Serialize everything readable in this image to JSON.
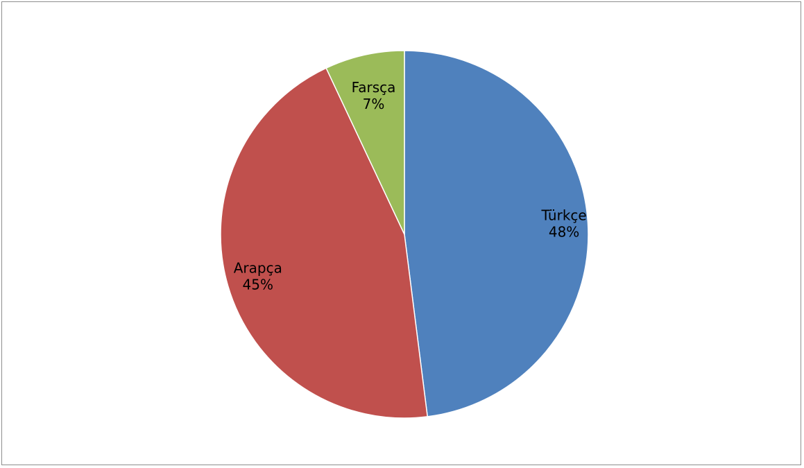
{
  "chart_data": {
    "type": "pie",
    "title": "",
    "legend": "none",
    "start": "top",
    "direction": "clockwise",
    "slices": [
      {
        "label": "Türkçe",
        "value": 48,
        "percent_label": "48%",
        "color": "#4f81bd"
      },
      {
        "label": "Arapça",
        "value": 45,
        "percent_label": "45%",
        "color": "#c0504d"
      },
      {
        "label": "Farsça",
        "value": 7,
        "percent_label": "7%",
        "color": "#9bbb59"
      }
    ]
  }
}
